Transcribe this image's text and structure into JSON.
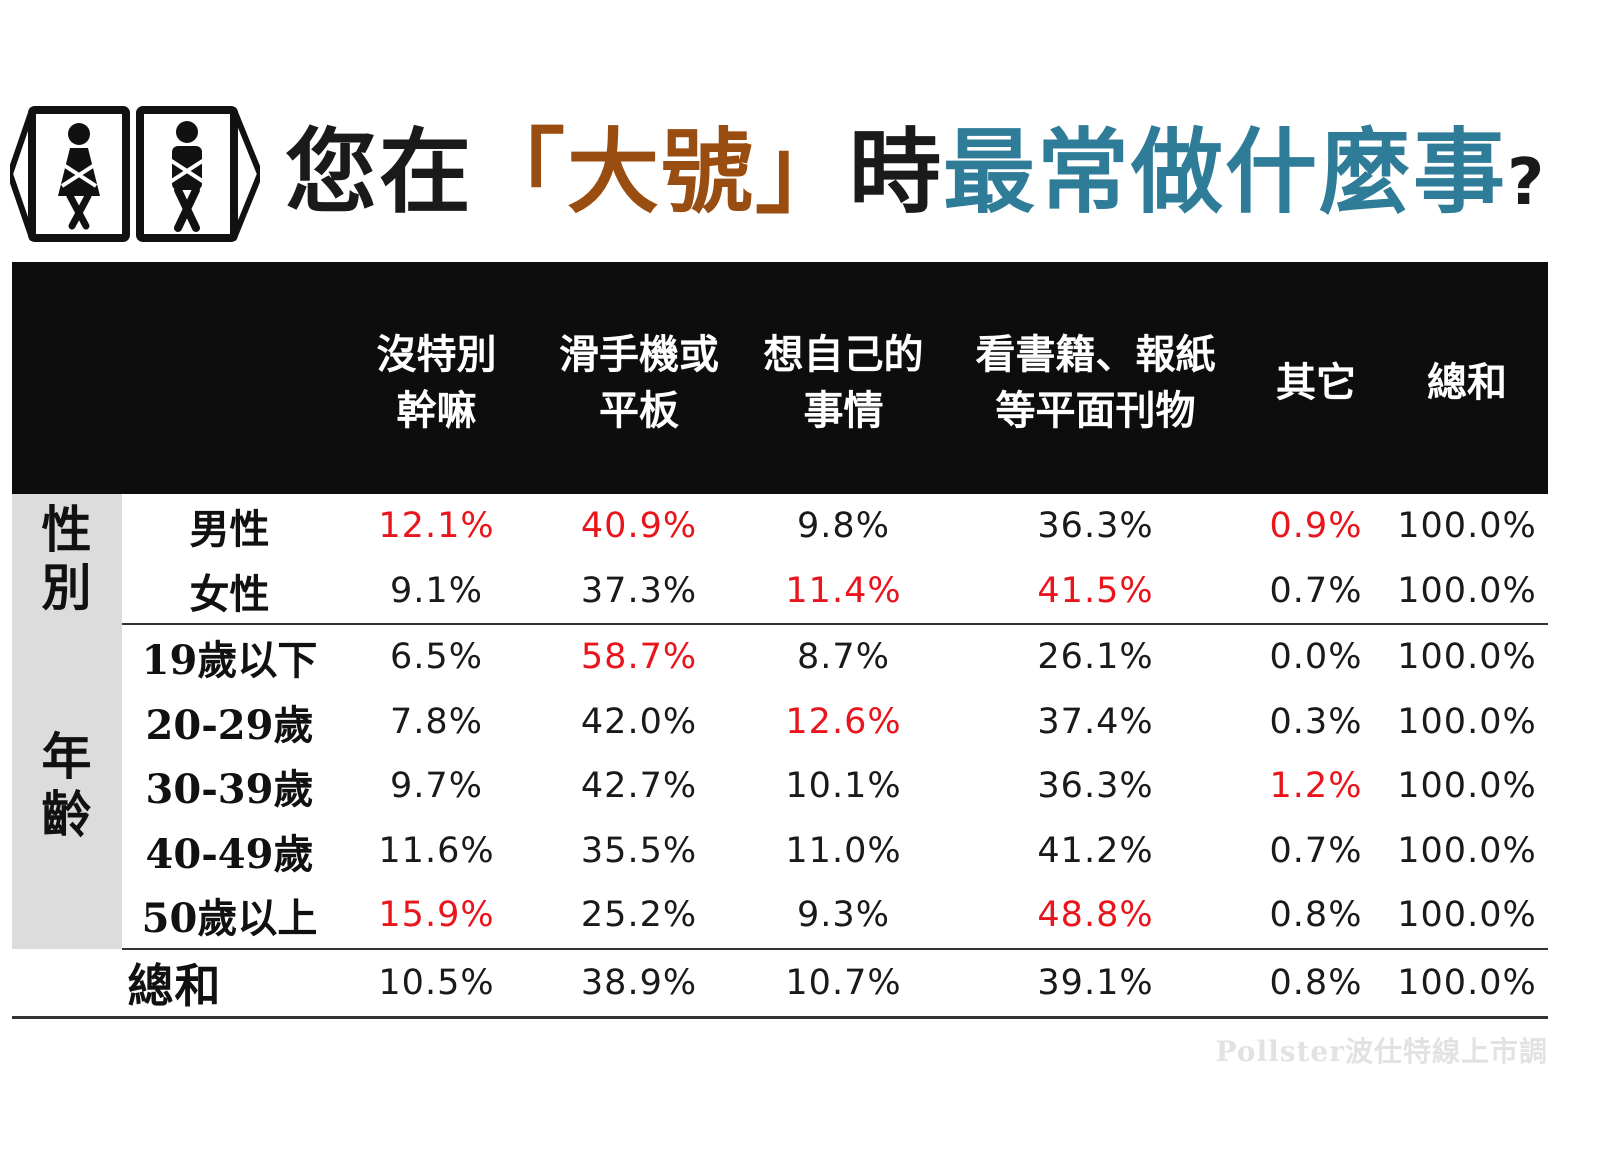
{
  "title": {
    "part1": "您在",
    "part2": "「大號」",
    "part3": "時",
    "part4": "最常做什麼事",
    "part5": "?"
  },
  "icons": {
    "left": "restroom-woman-icon",
    "right": "restroom-man-icon"
  },
  "colors": {
    "highlight": "#e8161c",
    "title_brown": "#9a4d10",
    "title_teal": "#2f7c98",
    "header_bg": "#0d0d0d",
    "group_bg": "#dcdcdc"
  },
  "chart_data": {
    "type": "table",
    "columns": [
      {
        "line1": "沒特別",
        "line2": "幹嘛"
      },
      {
        "line1": "滑手機或",
        "line2": "平板"
      },
      {
        "line1": "想自己的",
        "line2": "事情"
      },
      {
        "line1": "看書籍、報紙",
        "line2": "等平面刊物"
      },
      {
        "line1": "其它",
        "line2": ""
      },
      {
        "line1": "總和",
        "line2": ""
      }
    ],
    "groups": [
      {
        "label_line1": "性",
        "label_line2": "別",
        "rows": [
          {
            "label": "男性",
            "values": [
              "12.1%",
              "40.9%",
              "9.8%",
              "36.3%",
              "0.9%",
              "100.0%"
            ],
            "highlight": [
              true,
              true,
              false,
              false,
              true,
              false
            ]
          },
          {
            "label": "女性",
            "values": [
              "9.1%",
              "37.3%",
              "11.4%",
              "41.5%",
              "0.7%",
              "100.0%"
            ],
            "highlight": [
              false,
              false,
              true,
              true,
              false,
              false
            ]
          }
        ]
      },
      {
        "label_line1": "年",
        "label_line2": "齡",
        "rows": [
          {
            "label": "19歲以下",
            "values": [
              "6.5%",
              "58.7%",
              "8.7%",
              "26.1%",
              "0.0%",
              "100.0%"
            ],
            "highlight": [
              false,
              true,
              false,
              false,
              false,
              false
            ]
          },
          {
            "label": "20-29歲",
            "values": [
              "7.8%",
              "42.0%",
              "12.6%",
              "37.4%",
              "0.3%",
              "100.0%"
            ],
            "highlight": [
              false,
              false,
              true,
              false,
              false,
              false
            ]
          },
          {
            "label": "30-39歲",
            "values": [
              "9.7%",
              "42.7%",
              "10.1%",
              "36.3%",
              "1.2%",
              "100.0%"
            ],
            "highlight": [
              false,
              false,
              false,
              false,
              true,
              false
            ]
          },
          {
            "label": "40-49歲",
            "values": [
              "11.6%",
              "35.5%",
              "11.0%",
              "41.2%",
              "0.7%",
              "100.0%"
            ],
            "highlight": [
              false,
              false,
              false,
              false,
              false,
              false
            ]
          },
          {
            "label": "50歲以上",
            "values": [
              "15.9%",
              "25.2%",
              "9.3%",
              "48.8%",
              "0.8%",
              "100.0%"
            ],
            "highlight": [
              true,
              false,
              false,
              true,
              false,
              false
            ]
          }
        ]
      }
    ],
    "total": {
      "label": "總和",
      "values": [
        "10.5%",
        "38.9%",
        "10.7%",
        "39.1%",
        "0.8%",
        "100.0%"
      ]
    }
  },
  "watermark": "Pollster波仕特線上市調"
}
